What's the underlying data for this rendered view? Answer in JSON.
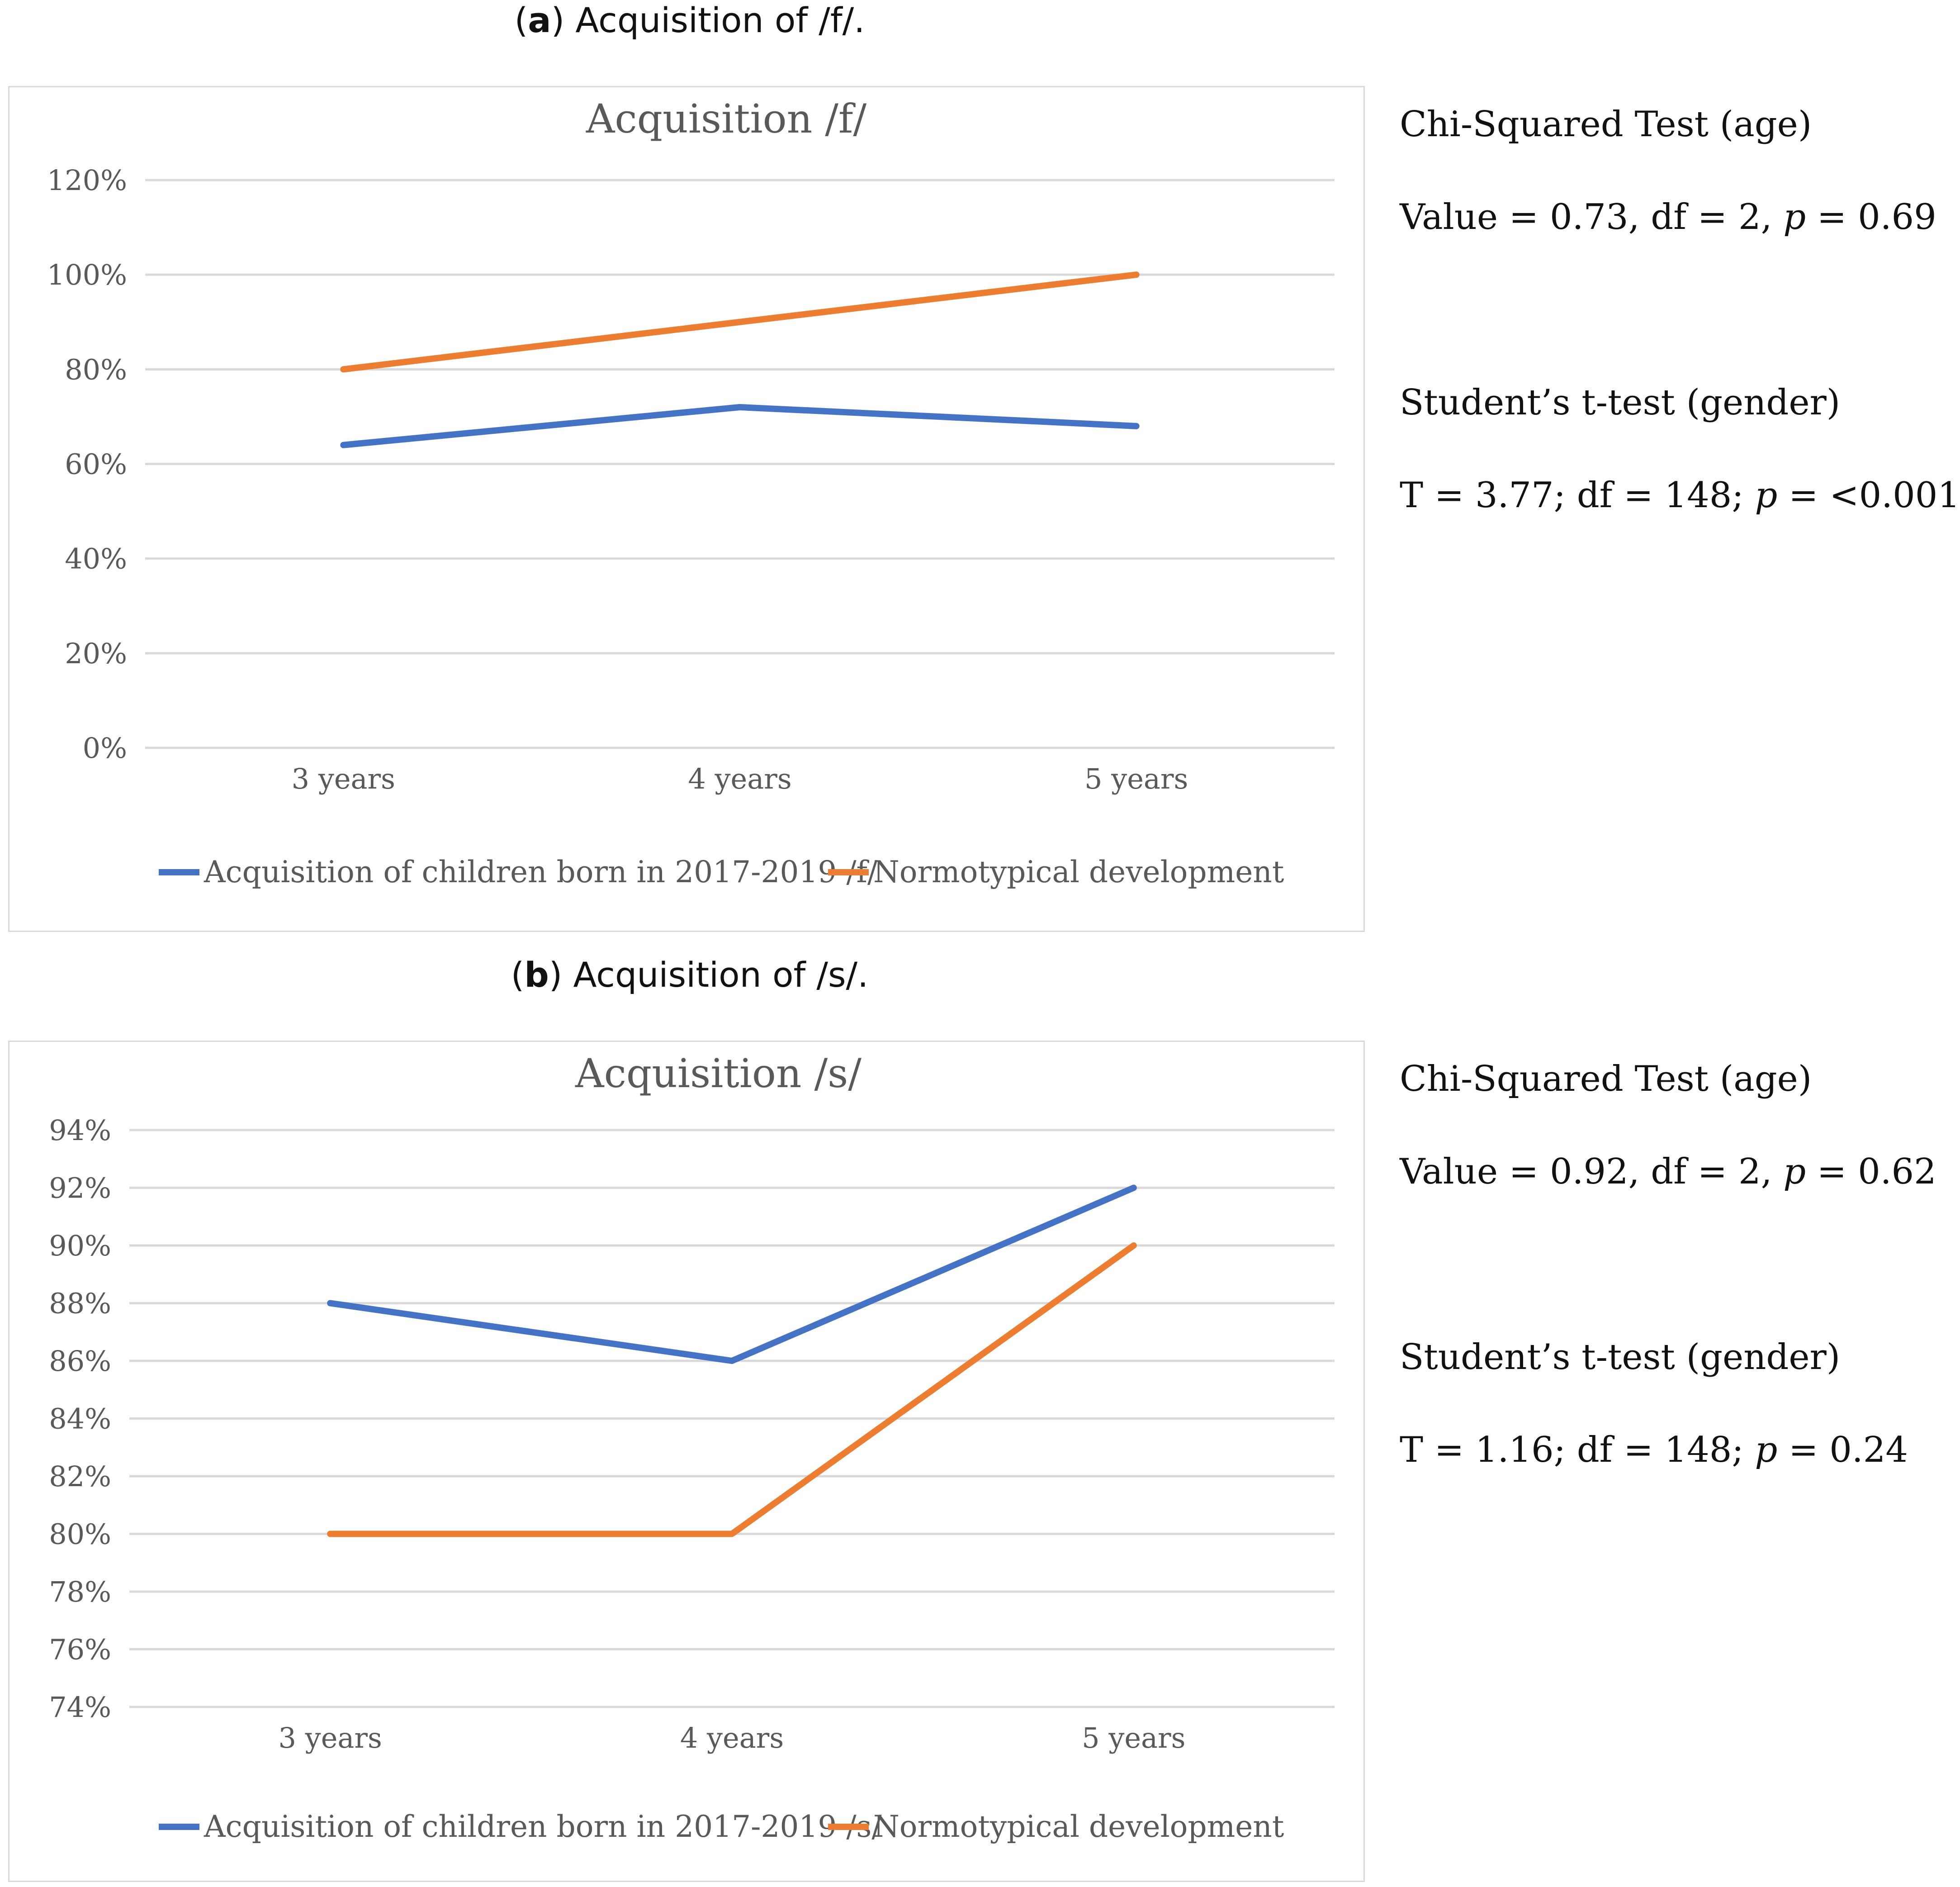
{
  "colors": {
    "series_blue": "#4472c4",
    "series_orange": "#ed7d31",
    "grid": "#d9d9d9",
    "text": "#595959"
  },
  "panels": [
    {
      "caption_letter": "a",
      "caption_text": "Acquisition of /f/.",
      "stats": {
        "chi_title": "Chi-Squared Test (age)",
        "chi_value_label": "Value = 0.73, df = 2, ",
        "chi_p": "p",
        "chi_p_value": " = 0.69",
        "t_title": "Student’s t-test (gender)",
        "t_value_label": "T = 3.77; df = 148; ",
        "t_p": "p",
        "t_p_value": " = <0.001"
      }
    },
    {
      "caption_letter": "b",
      "caption_text": "Acquisition of /s/.",
      "stats": {
        "chi_title": "Chi-Squared Test (age)",
        "chi_value_label": "Value = 0.92, df = 2, ",
        "chi_p": "p",
        "chi_p_value": " = 0.62",
        "t_title": "Student’s t-test (gender)",
        "t_value_label": "T = 1.16; df = 148; ",
        "t_p": "p",
        "t_p_value": " = 0.24"
      }
    }
  ],
  "chart_data": [
    {
      "type": "line",
      "title": "Acquisition /f/",
      "categories": [
        "3 years",
        "4 years",
        "5 years"
      ],
      "ylim": [
        0,
        120
      ],
      "ytick_step": 20,
      "yticks": [
        "0%",
        "20%",
        "40%",
        "60%",
        "80%",
        "100%",
        "120%"
      ],
      "series": [
        {
          "name": "Acquisition of children born in 2017-2019  /f/",
          "values": [
            64,
            72,
            68
          ]
        },
        {
          "name": "Normotypical development",
          "values": [
            80,
            90,
            100
          ]
        }
      ],
      "legend": "bottom",
      "grid": true
    },
    {
      "type": "line",
      "title": "Acquisition /s/",
      "categories": [
        "3 years",
        "4 years",
        "5 years"
      ],
      "ylim": [
        74,
        94
      ],
      "ytick_step": 2,
      "yticks": [
        "74%",
        "76%",
        "78%",
        "80%",
        "82%",
        "84%",
        "86%",
        "88%",
        "90%",
        "92%",
        "94%"
      ],
      "series": [
        {
          "name": "Acquisition of children born in 2017-2019  /s/",
          "values": [
            88,
            86,
            92
          ]
        },
        {
          "name": "Normotypical development",
          "values": [
            80,
            80,
            90
          ]
        }
      ],
      "legend": "bottom",
      "grid": true
    }
  ]
}
